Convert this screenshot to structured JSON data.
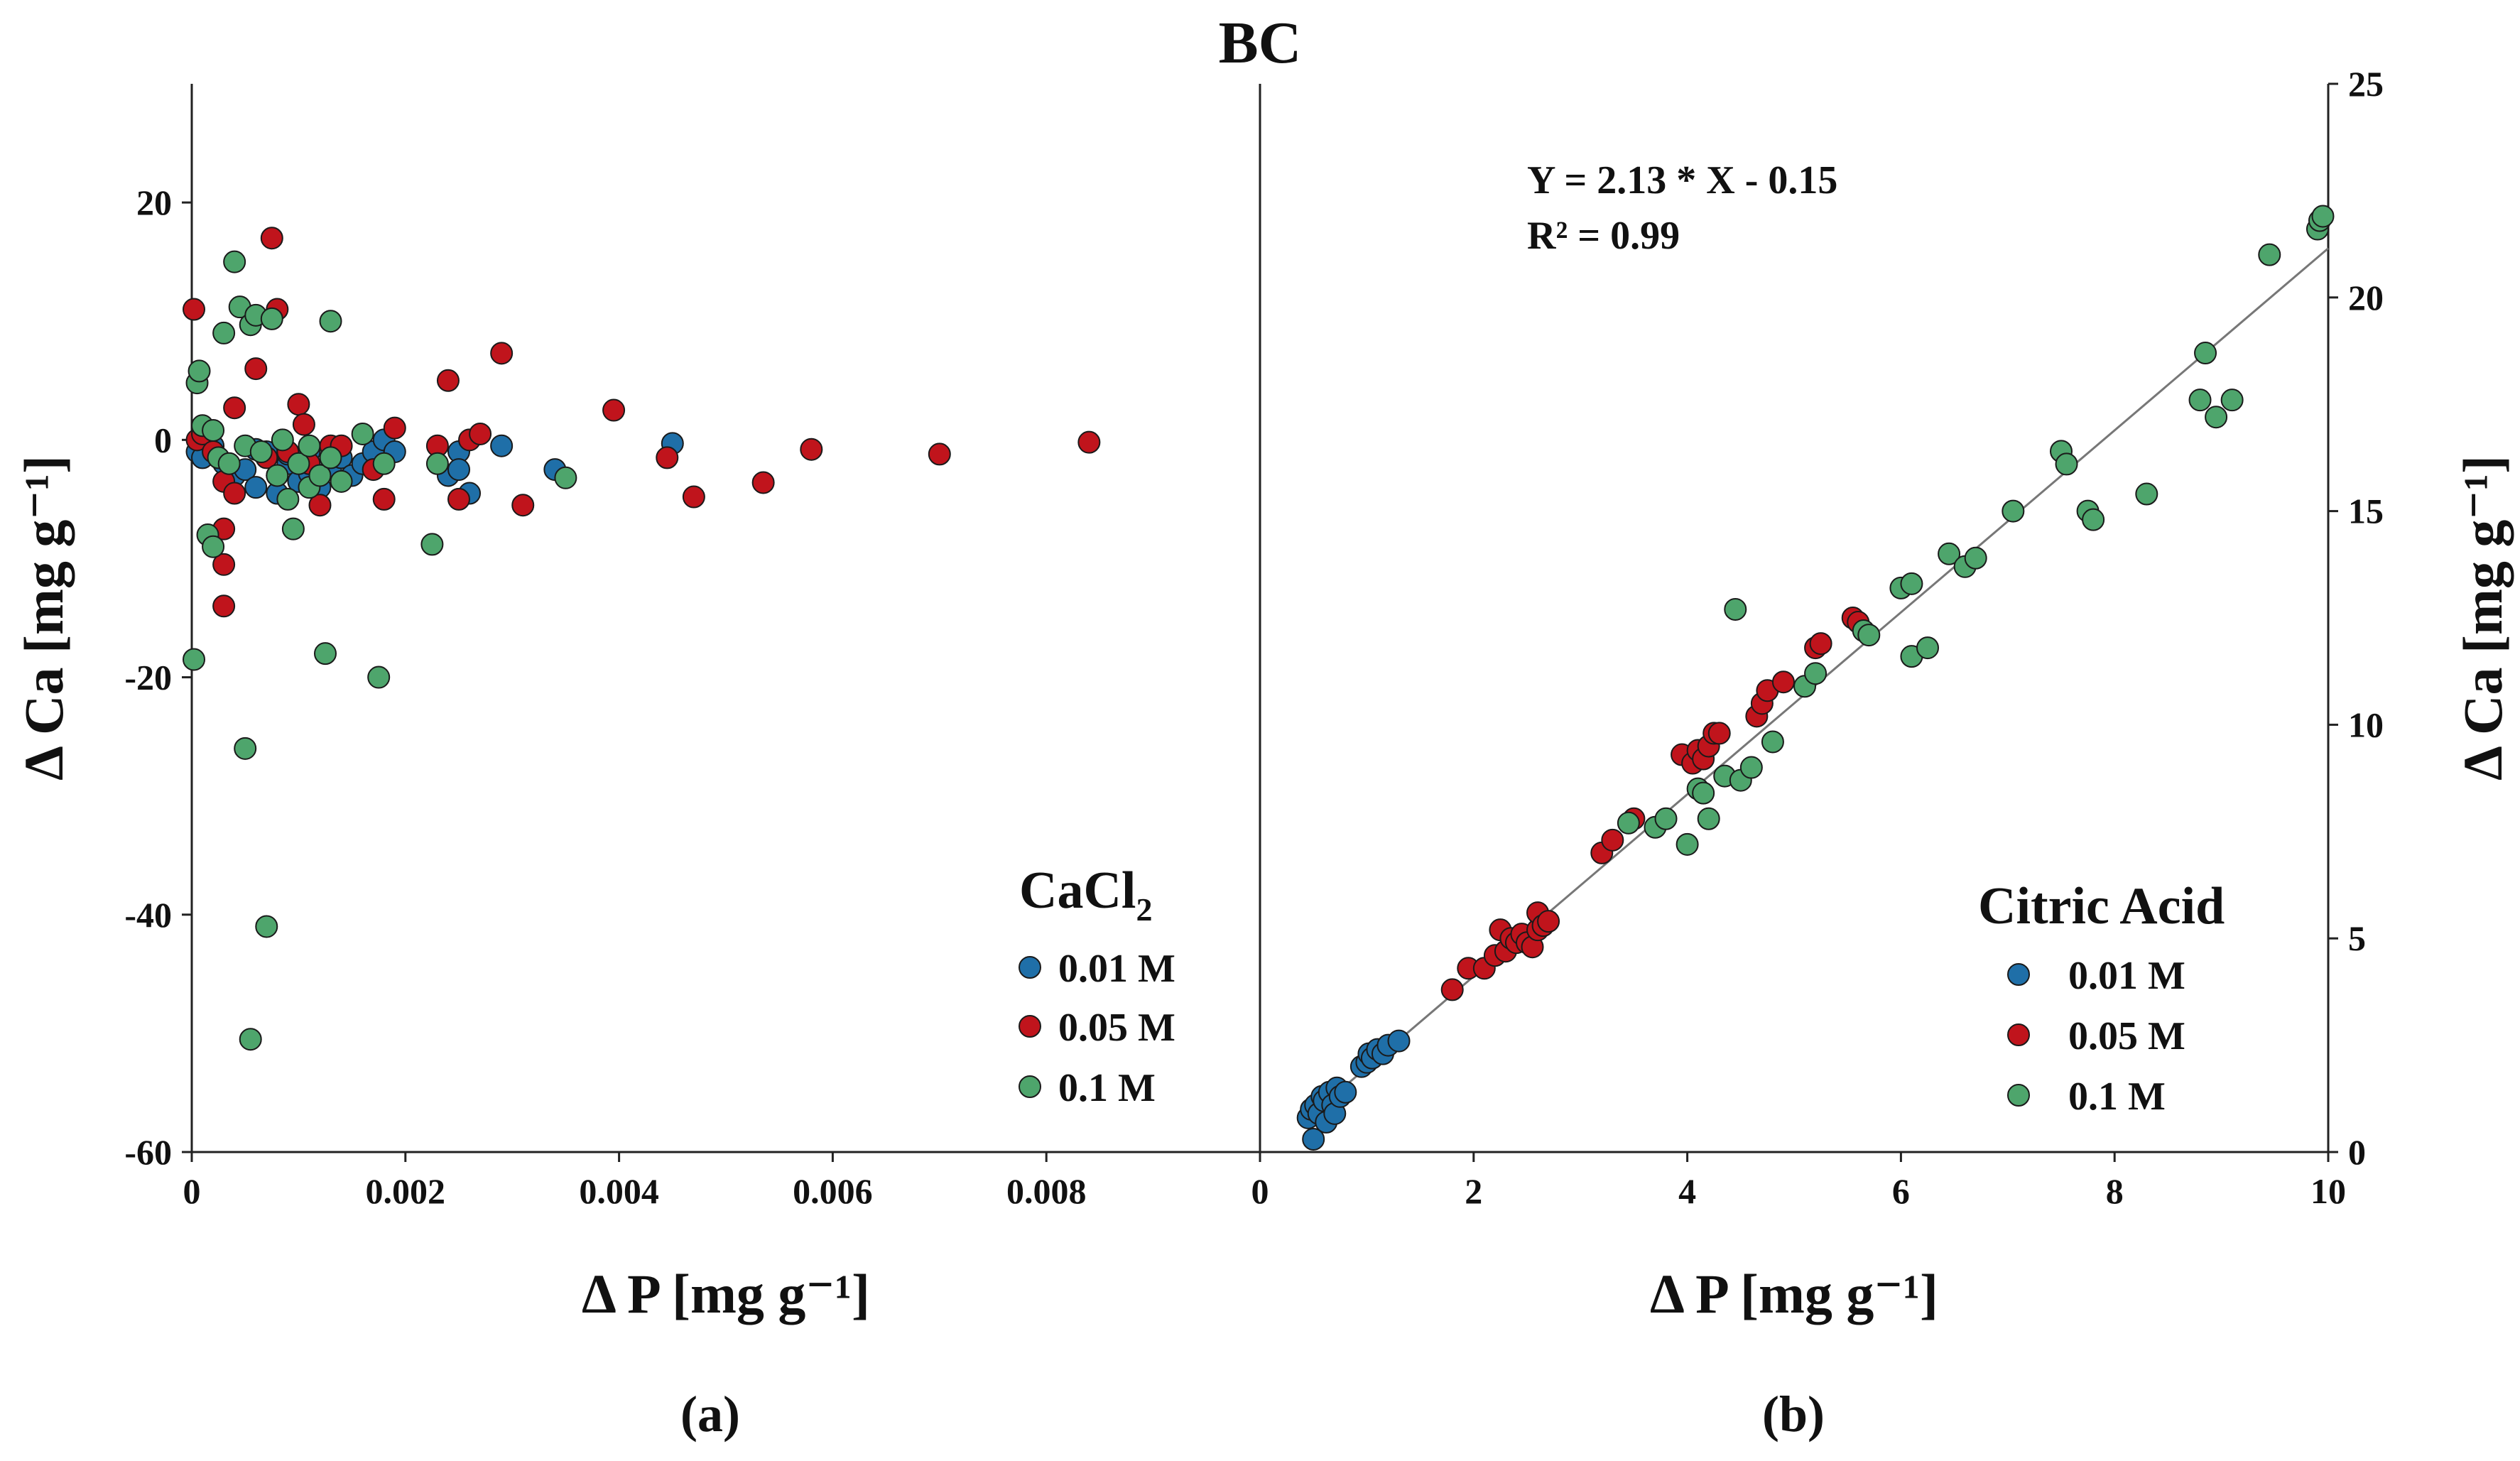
{
  "title": "BC",
  "colors": {
    "s001": "#1f6fa8",
    "s005": "#c0141c",
    "s01": "#4ea56c",
    "axis": "#222222",
    "fit": "#777777"
  },
  "chart_data": [
    {
      "type": "scatter",
      "panel": "(a)",
      "xlabel": "Δ P [mg g⁻¹]",
      "ylabel": "Δ Ca [mg g⁻¹]",
      "xlim": [
        0,
        0.01
      ],
      "ylim": [
        -60,
        30
      ],
      "xticks": [
        "0",
        "0.002",
        "0.004",
        "0.006",
        "0.008"
      ],
      "yticks": [
        "-60",
        "-40",
        "-20",
        "0",
        "20"
      ],
      "legend": {
        "title": "CaCl",
        "title_sub": "2",
        "position": "bottom-right"
      },
      "series": [
        {
          "name": "0.01 M",
          "color_key": "s001",
          "points": [
            [
              5e-05,
              -1
            ],
            [
              0.0001,
              -1.5
            ],
            [
              0.0002,
              -0.5
            ],
            [
              0.0003,
              -2
            ],
            [
              0.0004,
              -3
            ],
            [
              0.0005,
              -2.5
            ],
            [
              0.0006,
              -4
            ],
            [
              0.0007,
              -1
            ],
            [
              0.0008,
              -3
            ],
            [
              0.0008,
              -4.5
            ],
            [
              0.0009,
              -2
            ],
            [
              0.001,
              -3.5
            ],
            [
              0.0011,
              -1
            ],
            [
              0.0012,
              -4
            ],
            [
              0.0013,
              -2.5
            ],
            [
              0.0014,
              -1.5
            ],
            [
              0.0015,
              -3
            ],
            [
              0.0016,
              -2
            ],
            [
              0.0017,
              -1
            ],
            [
              0.0018,
              0
            ],
            [
              0.0019,
              -1
            ],
            [
              0.0024,
              -3
            ],
            [
              0.0025,
              -1
            ],
            [
              0.0025,
              -2.5
            ],
            [
              0.0026,
              -4.5
            ],
            [
              0.0029,
              -0.5
            ],
            [
              0.0034,
              -2.5
            ],
            [
              0.0045,
              -0.3
            ],
            [
              0.0006,
              -0.8
            ],
            [
              0.0009,
              -1.2
            ],
            [
              0.0011,
              -2.8
            ]
          ]
        },
        {
          "name": "0.05 M",
          "color_key": "s005",
          "points": [
            [
              2e-05,
              11
            ],
            [
              5e-05,
              0
            ],
            [
              0.0001,
              0.5
            ],
            [
              0.0002,
              -1
            ],
            [
              0.0003,
              -3.5
            ],
            [
              0.0003,
              -7.5
            ],
            [
              0.0003,
              -10.5
            ],
            [
              0.0003,
              -14
            ],
            [
              0.0004,
              -4.5
            ],
            [
              0.0004,
              2.7
            ],
            [
              0.0006,
              6
            ],
            [
              0.0007,
              -1.5
            ],
            [
              0.00075,
              17
            ],
            [
              0.0008,
              11
            ],
            [
              0.0009,
              -1
            ],
            [
              0.001,
              3
            ],
            [
              0.00105,
              1.3
            ],
            [
              0.0011,
              -2
            ],
            [
              0.0012,
              -5.5
            ],
            [
              0.0013,
              -0.5
            ],
            [
              0.0014,
              -0.5
            ],
            [
              0.0017,
              -2.5
            ],
            [
              0.0018,
              -5
            ],
            [
              0.0019,
              1
            ],
            [
              0.0023,
              -0.5
            ],
            [
              0.0024,
              5
            ],
            [
              0.0025,
              -5
            ],
            [
              0.0026,
              0
            ],
            [
              0.0027,
              0.5
            ],
            [
              0.0029,
              7.3
            ],
            [
              0.0031,
              -5.5
            ],
            [
              0.00395,
              2.5
            ],
            [
              0.00445,
              -1.5
            ],
            [
              0.0047,
              -4.8
            ],
            [
              0.00535,
              -3.6
            ],
            [
              0.0058,
              -0.8
            ],
            [
              0.007,
              -1.2
            ],
            [
              0.0084,
              -0.2
            ]
          ]
        },
        {
          "name": "0.1 M",
          "color_key": "s01",
          "points": [
            [
              2e-05,
              -18.5
            ],
            [
              5e-05,
              4.8
            ],
            [
              7e-05,
              5.8
            ],
            [
              0.0001,
              1.2
            ],
            [
              0.00015,
              -8
            ],
            [
              0.0002,
              -9
            ],
            [
              0.0002,
              0.8
            ],
            [
              0.00025,
              -1.5
            ],
            [
              0.0003,
              9
            ],
            [
              0.00035,
              -2
            ],
            [
              0.0004,
              15
            ],
            [
              0.00045,
              11.2
            ],
            [
              0.0005,
              -26
            ],
            [
              0.0005,
              -0.5
            ],
            [
              0.00055,
              9.7
            ],
            [
              0.0006,
              10.5
            ],
            [
              0.00055,
              -50.5
            ],
            [
              0.00065,
              -1
            ],
            [
              0.0007,
              -41
            ],
            [
              0.00075,
              10.2
            ],
            [
              0.0008,
              -3
            ],
            [
              0.00085,
              0
            ],
            [
              0.0009,
              -5
            ],
            [
              0.00095,
              -7.5
            ],
            [
              0.001,
              -2
            ],
            [
              0.0011,
              -4
            ],
            [
              0.0011,
              -0.5
            ],
            [
              0.0012,
              -3
            ],
            [
              0.00125,
              -18
            ],
            [
              0.0013,
              10
            ],
            [
              0.0013,
              -1.5
            ],
            [
              0.0014,
              -3.5
            ],
            [
              0.0016,
              0.5
            ],
            [
              0.00175,
              -20
            ],
            [
              0.0018,
              -2
            ],
            [
              0.00225,
              -8.8
            ],
            [
              0.0023,
              -2
            ],
            [
              0.0035,
              -3.2
            ]
          ]
        }
      ]
    },
    {
      "type": "scatter",
      "panel": "(b)",
      "xlabel": "Δ P [mg g⁻¹]",
      "ylabel": "Δ Ca [mg g⁻¹]",
      "xlim": [
        0,
        10
      ],
      "ylim": [
        0,
        25
      ],
      "xticks": [
        "0",
        "2",
        "4",
        "6",
        "8",
        "10"
      ],
      "yticks": [
        "0",
        "5",
        "10",
        "15",
        "20",
        "25"
      ],
      "equation": "Y = 2.13 * X - 0.15",
      "r2": "R² = 0.99",
      "fit": {
        "slope": 2.13,
        "intercept": -0.15,
        "x_range": [
          0.5,
          10
        ]
      },
      "legend": {
        "title": "Citric Acid",
        "position": "bottom-right"
      },
      "series": [
        {
          "name": "0.01 M",
          "color_key": "s001",
          "points": [
            [
              0.45,
              0.8
            ],
            [
              0.48,
              1.0
            ],
            [
              0.5,
              0.3
            ],
            [
              0.52,
              1.1
            ],
            [
              0.55,
              0.9
            ],
            [
              0.58,
              1.3
            ],
            [
              0.6,
              1.2
            ],
            [
              0.62,
              0.7
            ],
            [
              0.65,
              1.4
            ],
            [
              0.68,
              1.1
            ],
            [
              0.7,
              0.9
            ],
            [
              0.72,
              1.5
            ],
            [
              0.75,
              1.3
            ],
            [
              0.8,
              1.4
            ],
            [
              0.95,
              2.0
            ],
            [
              1.0,
              2.1
            ],
            [
              1.02,
              2.3
            ],
            [
              1.05,
              2.2
            ],
            [
              1.1,
              2.4
            ],
            [
              1.15,
              2.3
            ],
            [
              1.2,
              2.5
            ],
            [
              1.3,
              2.6
            ]
          ]
        },
        {
          "name": "0.05 M",
          "color_key": "s005",
          "points": [
            [
              1.8,
              3.8
            ],
            [
              1.95,
              4.3
            ],
            [
              2.1,
              4.3
            ],
            [
              2.2,
              4.6
            ],
            [
              2.25,
              5.2
            ],
            [
              2.3,
              4.7
            ],
            [
              2.35,
              5.0
            ],
            [
              2.4,
              4.9
            ],
            [
              2.45,
              5.1
            ],
            [
              2.5,
              4.9
            ],
            [
              2.55,
              4.8
            ],
            [
              2.6,
              5.2
            ],
            [
              2.6,
              5.6
            ],
            [
              2.65,
              5.3
            ],
            [
              2.7,
              5.4
            ],
            [
              3.2,
              7.0
            ],
            [
              3.3,
              7.3
            ],
            [
              3.5,
              7.8
            ],
            [
              3.95,
              9.3
            ],
            [
              4.05,
              9.1
            ],
            [
              4.1,
              9.4
            ],
            [
              4.15,
              9.2
            ],
            [
              4.2,
              9.5
            ],
            [
              4.25,
              9.8
            ],
            [
              4.3,
              9.8
            ],
            [
              4.65,
              10.2
            ],
            [
              4.7,
              10.5
            ],
            [
              4.75,
              10.8
            ],
            [
              4.9,
              11.0
            ],
            [
              5.2,
              11.8
            ],
            [
              5.25,
              11.9
            ],
            [
              5.55,
              12.5
            ],
            [
              5.6,
              12.4
            ]
          ]
        },
        {
          "name": "0.1 M",
          "color_key": "s01",
          "points": [
            [
              3.45,
              7.7
            ],
            [
              3.7,
              7.6
            ],
            [
              3.8,
              7.8
            ],
            [
              4.0,
              7.2
            ],
            [
              4.1,
              8.5
            ],
            [
              4.15,
              8.4
            ],
            [
              4.2,
              7.8
            ],
            [
              4.35,
              8.8
            ],
            [
              4.45,
              12.7
            ],
            [
              4.5,
              8.7
            ],
            [
              4.6,
              9.0
            ],
            [
              4.8,
              9.6
            ],
            [
              5.1,
              10.9
            ],
            [
              5.2,
              11.2
            ],
            [
              5.65,
              12.2
            ],
            [
              5.7,
              12.1
            ],
            [
              6.0,
              13.2
            ],
            [
              6.1,
              13.3
            ],
            [
              6.1,
              11.6
            ],
            [
              6.25,
              11.8
            ],
            [
              6.45,
              14.0
            ],
            [
              6.6,
              13.7
            ],
            [
              6.7,
              13.9
            ],
            [
              7.05,
              15.0
            ],
            [
              7.5,
              16.4
            ],
            [
              7.55,
              16.1
            ],
            [
              7.75,
              15.0
            ],
            [
              7.8,
              14.8
            ],
            [
              8.3,
              15.4
            ],
            [
              8.8,
              17.6
            ],
            [
              8.85,
              18.7
            ],
            [
              8.95,
              17.2
            ],
            [
              9.1,
              17.6
            ],
            [
              9.45,
              21.0
            ],
            [
              9.9,
              21.6
            ],
            [
              9.92,
              21.8
            ],
            [
              9.95,
              21.9
            ]
          ]
        }
      ]
    }
  ]
}
